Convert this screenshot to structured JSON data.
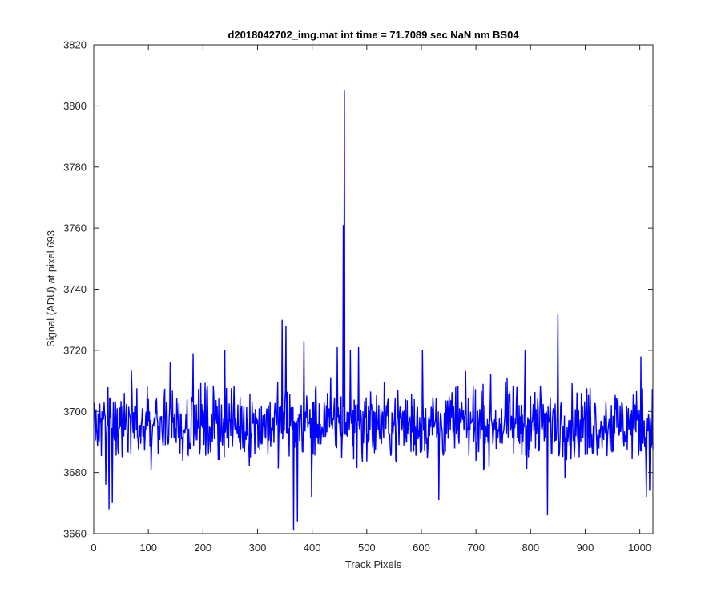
{
  "chart_data": {
    "type": "line",
    "title": "d2018042702_img.mat int time = 71.7089 sec  NaN nm BS04",
    "xlabel": "Track Pixels",
    "ylabel": "Signal (ADU) at pixel 693",
    "xlim": [
      0,
      1024
    ],
    "ylim": [
      3660,
      3820
    ],
    "xticks": [
      0,
      100,
      200,
      300,
      400,
      500,
      600,
      700,
      800,
      900,
      1000
    ],
    "yticks": [
      3660,
      3680,
      3700,
      3720,
      3740,
      3760,
      3780,
      3800,
      3820
    ],
    "grid": false,
    "series_color": "#0000ff",
    "series": [
      {
        "x_start": 1,
        "x_step": 1,
        "noise_center": 3696,
        "noise_amplitude_typical": 6,
        "notable_points": [
          {
            "x": 22,
            "y": 3676
          },
          {
            "x": 28,
            "y": 3668
          },
          {
            "x": 34,
            "y": 3670
          },
          {
            "x": 140,
            "y": 3716
          },
          {
            "x": 182,
            "y": 3719
          },
          {
            "x": 240,
            "y": 3720
          },
          {
            "x": 345,
            "y": 3730
          },
          {
            "x": 352,
            "y": 3728
          },
          {
            "x": 366,
            "y": 3661
          },
          {
            "x": 373,
            "y": 3664
          },
          {
            "x": 385,
            "y": 3723
          },
          {
            "x": 399,
            "y": 3672
          },
          {
            "x": 446,
            "y": 3721
          },
          {
            "x": 457,
            "y": 3761
          },
          {
            "x": 459,
            "y": 3805
          },
          {
            "x": 470,
            "y": 3720
          },
          {
            "x": 485,
            "y": 3721
          },
          {
            "x": 602,
            "y": 3720
          },
          {
            "x": 632,
            "y": 3671
          },
          {
            "x": 790,
            "y": 3720
          },
          {
            "x": 831,
            "y": 3666
          },
          {
            "x": 850,
            "y": 3732
          },
          {
            "x": 1002,
            "y": 3718
          },
          {
            "x": 1012,
            "y": 3672
          },
          {
            "x": 1018,
            "y": 3674
          }
        ]
      }
    ]
  }
}
